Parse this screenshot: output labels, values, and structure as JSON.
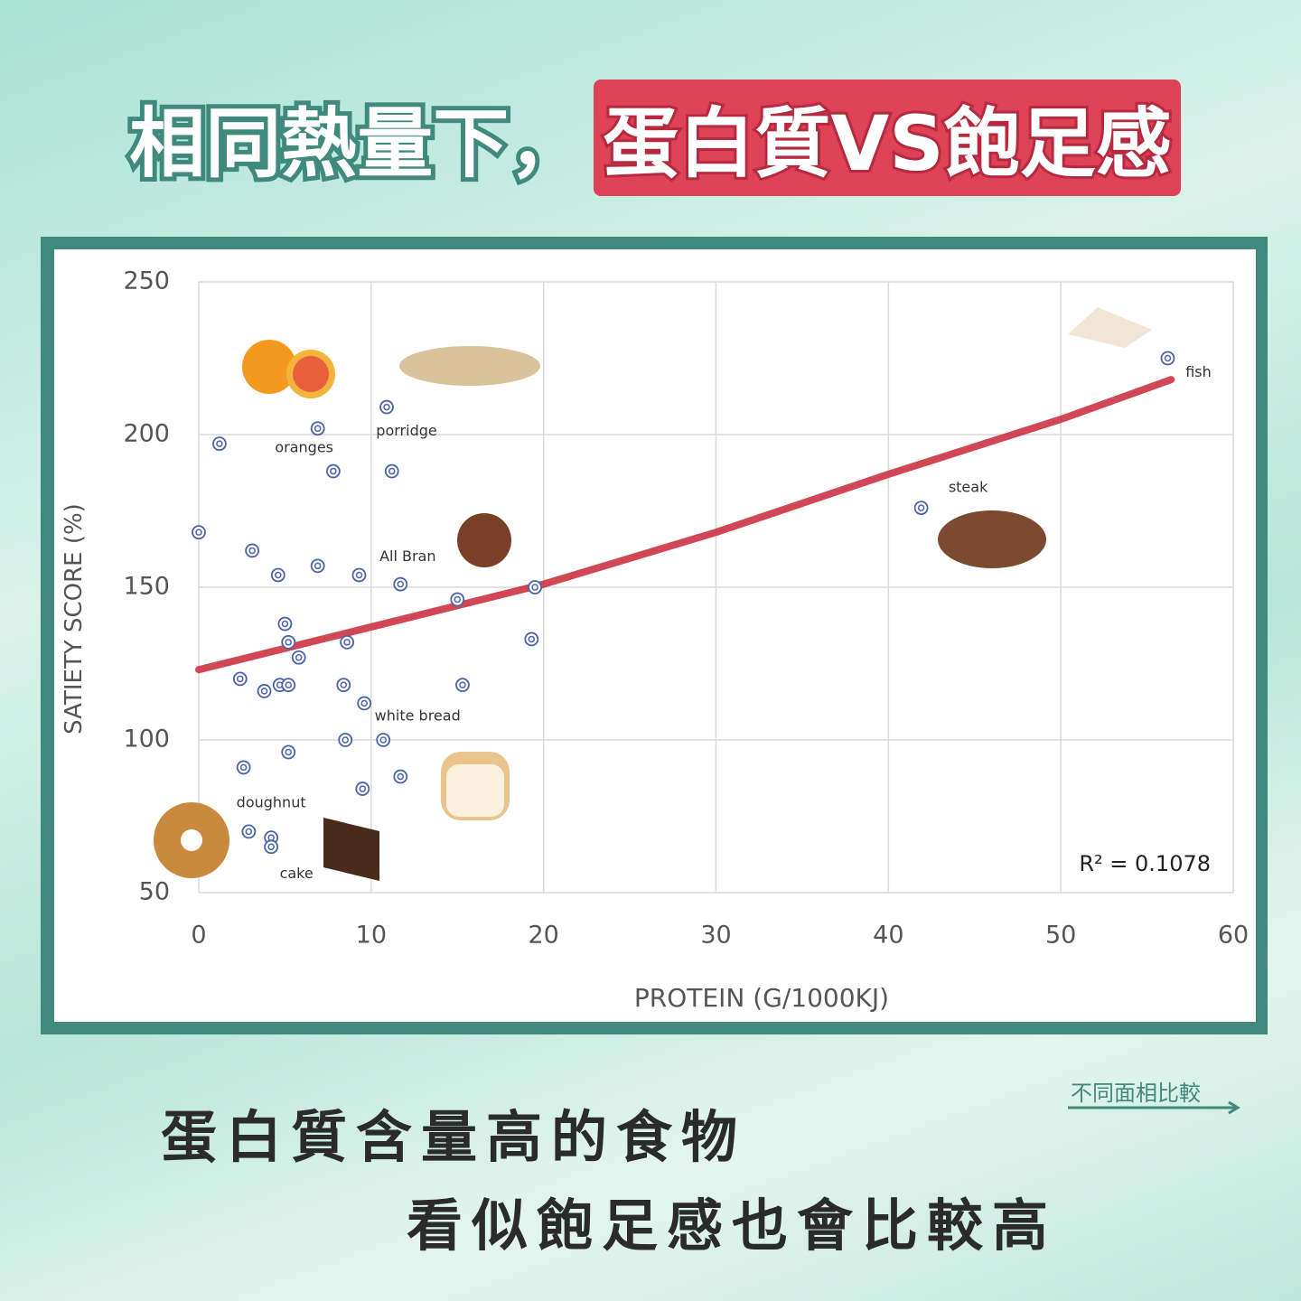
{
  "header": {
    "title_main": "相同熱量下，",
    "title_highlight": "蛋白質VS飽足感"
  },
  "chart_data": {
    "type": "scatter",
    "x_label": "PROTEIN (G/1000KJ)",
    "y_label": "SATIETY SCORE (%)",
    "x": [
      0,
      1.2,
      3.1,
      4.6,
      2.4,
      3.8,
      4.7,
      5.2,
      5.0,
      5.2,
      5.8,
      5.2,
      2.6,
      2.9,
      4.2,
      4.2,
      6.9,
      7.8,
      6.9,
      9.3,
      8.6,
      8.4,
      8.5,
      9.6,
      9.5,
      10.9,
      11.2,
      11.7,
      10.7,
      11.7,
      15.0,
      15.3,
      19.5,
      19.3,
      41.9,
      56.2
    ],
    "y": [
      168,
      197,
      162,
      154,
      120,
      116,
      118,
      118,
      138,
      132,
      127,
      96,
      91,
      70,
      68,
      65,
      202,
      188,
      157,
      154,
      132,
      118,
      100,
      112,
      84,
      209,
      188,
      151,
      100,
      88,
      146,
      118,
      150,
      133,
      176,
      225
    ],
    "labels": [
      null,
      null,
      null,
      null,
      null,
      null,
      null,
      null,
      null,
      null,
      null,
      null,
      null,
      null,
      "doughnut",
      "cake",
      "oranges",
      null,
      null,
      null,
      null,
      null,
      null,
      null,
      null,
      "porridge",
      null,
      "All Bran",
      "white bread",
      null,
      null,
      null,
      null,
      null,
      "steak",
      "fish"
    ],
    "color": "#4a62a8",
    "xlim": [
      0,
      60
    ],
    "ylim": [
      50,
      250
    ],
    "xticks": [
      0,
      10,
      20,
      30,
      40,
      50,
      60
    ],
    "yticks": [
      50,
      100,
      150,
      200,
      250
    ],
    "grid": true,
    "trendline": {
      "x": [
        0,
        10,
        20,
        30,
        40,
        50,
        56.4
      ],
      "y": [
        123,
        137,
        151,
        168,
        187,
        205,
        218
      ],
      "color": "#cc3344",
      "label": "R² = 0.1078"
    }
  },
  "footer": {
    "line1": "蛋白質含量高的食物",
    "line2": "看似飽足感也會比較高",
    "link": "不同面相比較"
  }
}
